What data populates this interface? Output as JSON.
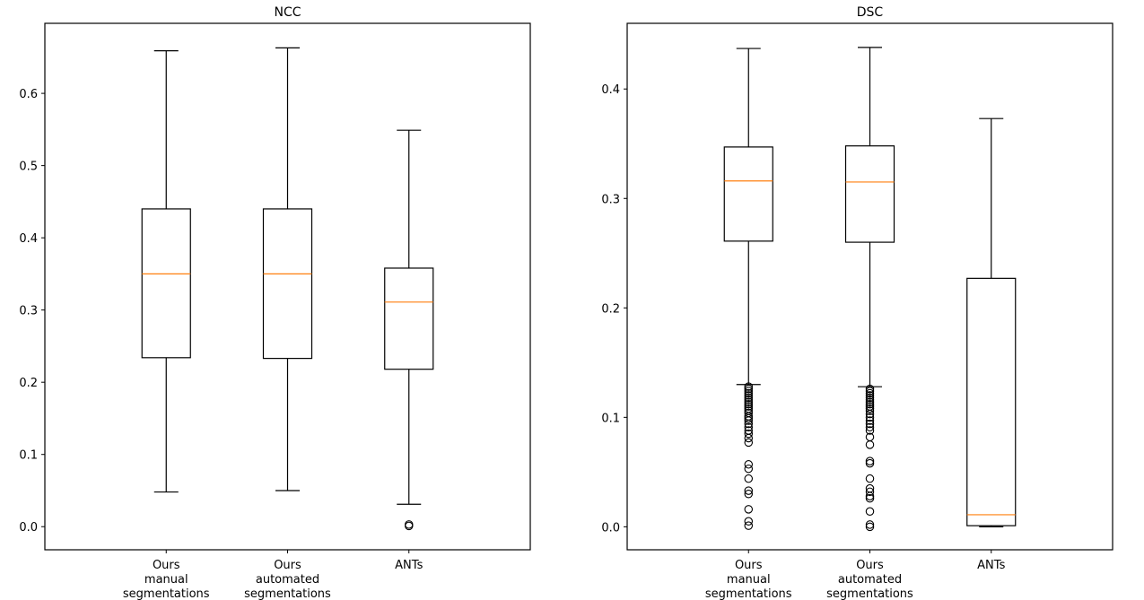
{
  "chart_data": [
    {
      "type": "box",
      "title": "NCC",
      "xlabel": "",
      "ylabel": "",
      "ylim": [
        -0.032,
        0.697
      ],
      "yticks": [
        0.0,
        0.1,
        0.2,
        0.3,
        0.4,
        0.5,
        0.6
      ],
      "ytick_labels": [
        "0.0",
        "0.1",
        "0.2",
        "0.3",
        "0.4",
        "0.5",
        "0.6"
      ],
      "grid": false,
      "categories": [
        [
          "Ours",
          "manual",
          "segmentations"
        ],
        [
          "Ours",
          "automated",
          "segmentations"
        ],
        [
          "ANTs"
        ]
      ],
      "boxes": [
        {
          "whisker_low": 0.048,
          "q1": 0.234,
          "median": 0.35,
          "q3": 0.44,
          "whisker_high": 0.659,
          "outliers": []
        },
        {
          "whisker_low": 0.05,
          "q1": 0.233,
          "median": 0.35,
          "q3": 0.44,
          "whisker_high": 0.663,
          "outliers": []
        },
        {
          "whisker_low": 0.031,
          "q1": 0.218,
          "median": 0.311,
          "q3": 0.358,
          "whisker_high": 0.549,
          "outliers": [
            0.001,
            0.003
          ]
        }
      ]
    },
    {
      "type": "box",
      "title": "DSC",
      "xlabel": "",
      "ylabel": "",
      "ylim": [
        -0.021,
        0.46
      ],
      "yticks": [
        0.0,
        0.1,
        0.2,
        0.3,
        0.4
      ],
      "ytick_labels": [
        "0.0",
        "0.1",
        "0.2",
        "0.3",
        "0.4"
      ],
      "grid": false,
      "categories": [
        [
          "Ours",
          "manual",
          "segmentations"
        ],
        [
          "Ours",
          "automated",
          "segmentations"
        ],
        [
          "ANTs"
        ]
      ],
      "boxes": [
        {
          "whisker_low": 0.13,
          "q1": 0.261,
          "median": 0.316,
          "q3": 0.347,
          "whisker_high": 0.437,
          "outliers": [
            0.128,
            0.126,
            0.124,
            0.122,
            0.12,
            0.118,
            0.116,
            0.114,
            0.112,
            0.11,
            0.108,
            0.106,
            0.104,
            0.101,
            0.099,
            0.097,
            0.094,
            0.091,
            0.088,
            0.085,
            0.081,
            0.077,
            0.057,
            0.053,
            0.044,
            0.033,
            0.03,
            0.016,
            0.005,
            0.001
          ]
        },
        {
          "whisker_low": 0.128,
          "q1": 0.26,
          "median": 0.315,
          "q3": 0.348,
          "whisker_high": 0.438,
          "outliers": [
            0.126,
            0.124,
            0.122,
            0.12,
            0.118,
            0.116,
            0.114,
            0.112,
            0.11,
            0.108,
            0.106,
            0.103,
            0.1,
            0.097,
            0.094,
            0.091,
            0.088,
            0.082,
            0.075,
            0.06,
            0.058,
            0.044,
            0.035,
            0.032,
            0.028,
            0.026,
            0.014,
            0.002,
            0.0
          ]
        },
        {
          "whisker_low": 0.0,
          "q1": 0.001,
          "median": 0.011,
          "q3": 0.227,
          "whisker_high": 0.373,
          "outliers": []
        }
      ]
    }
  ],
  "colors": {
    "box": "#000000",
    "median": "#ff7f0e",
    "axes": "#000000",
    "background": "#ffffff"
  }
}
